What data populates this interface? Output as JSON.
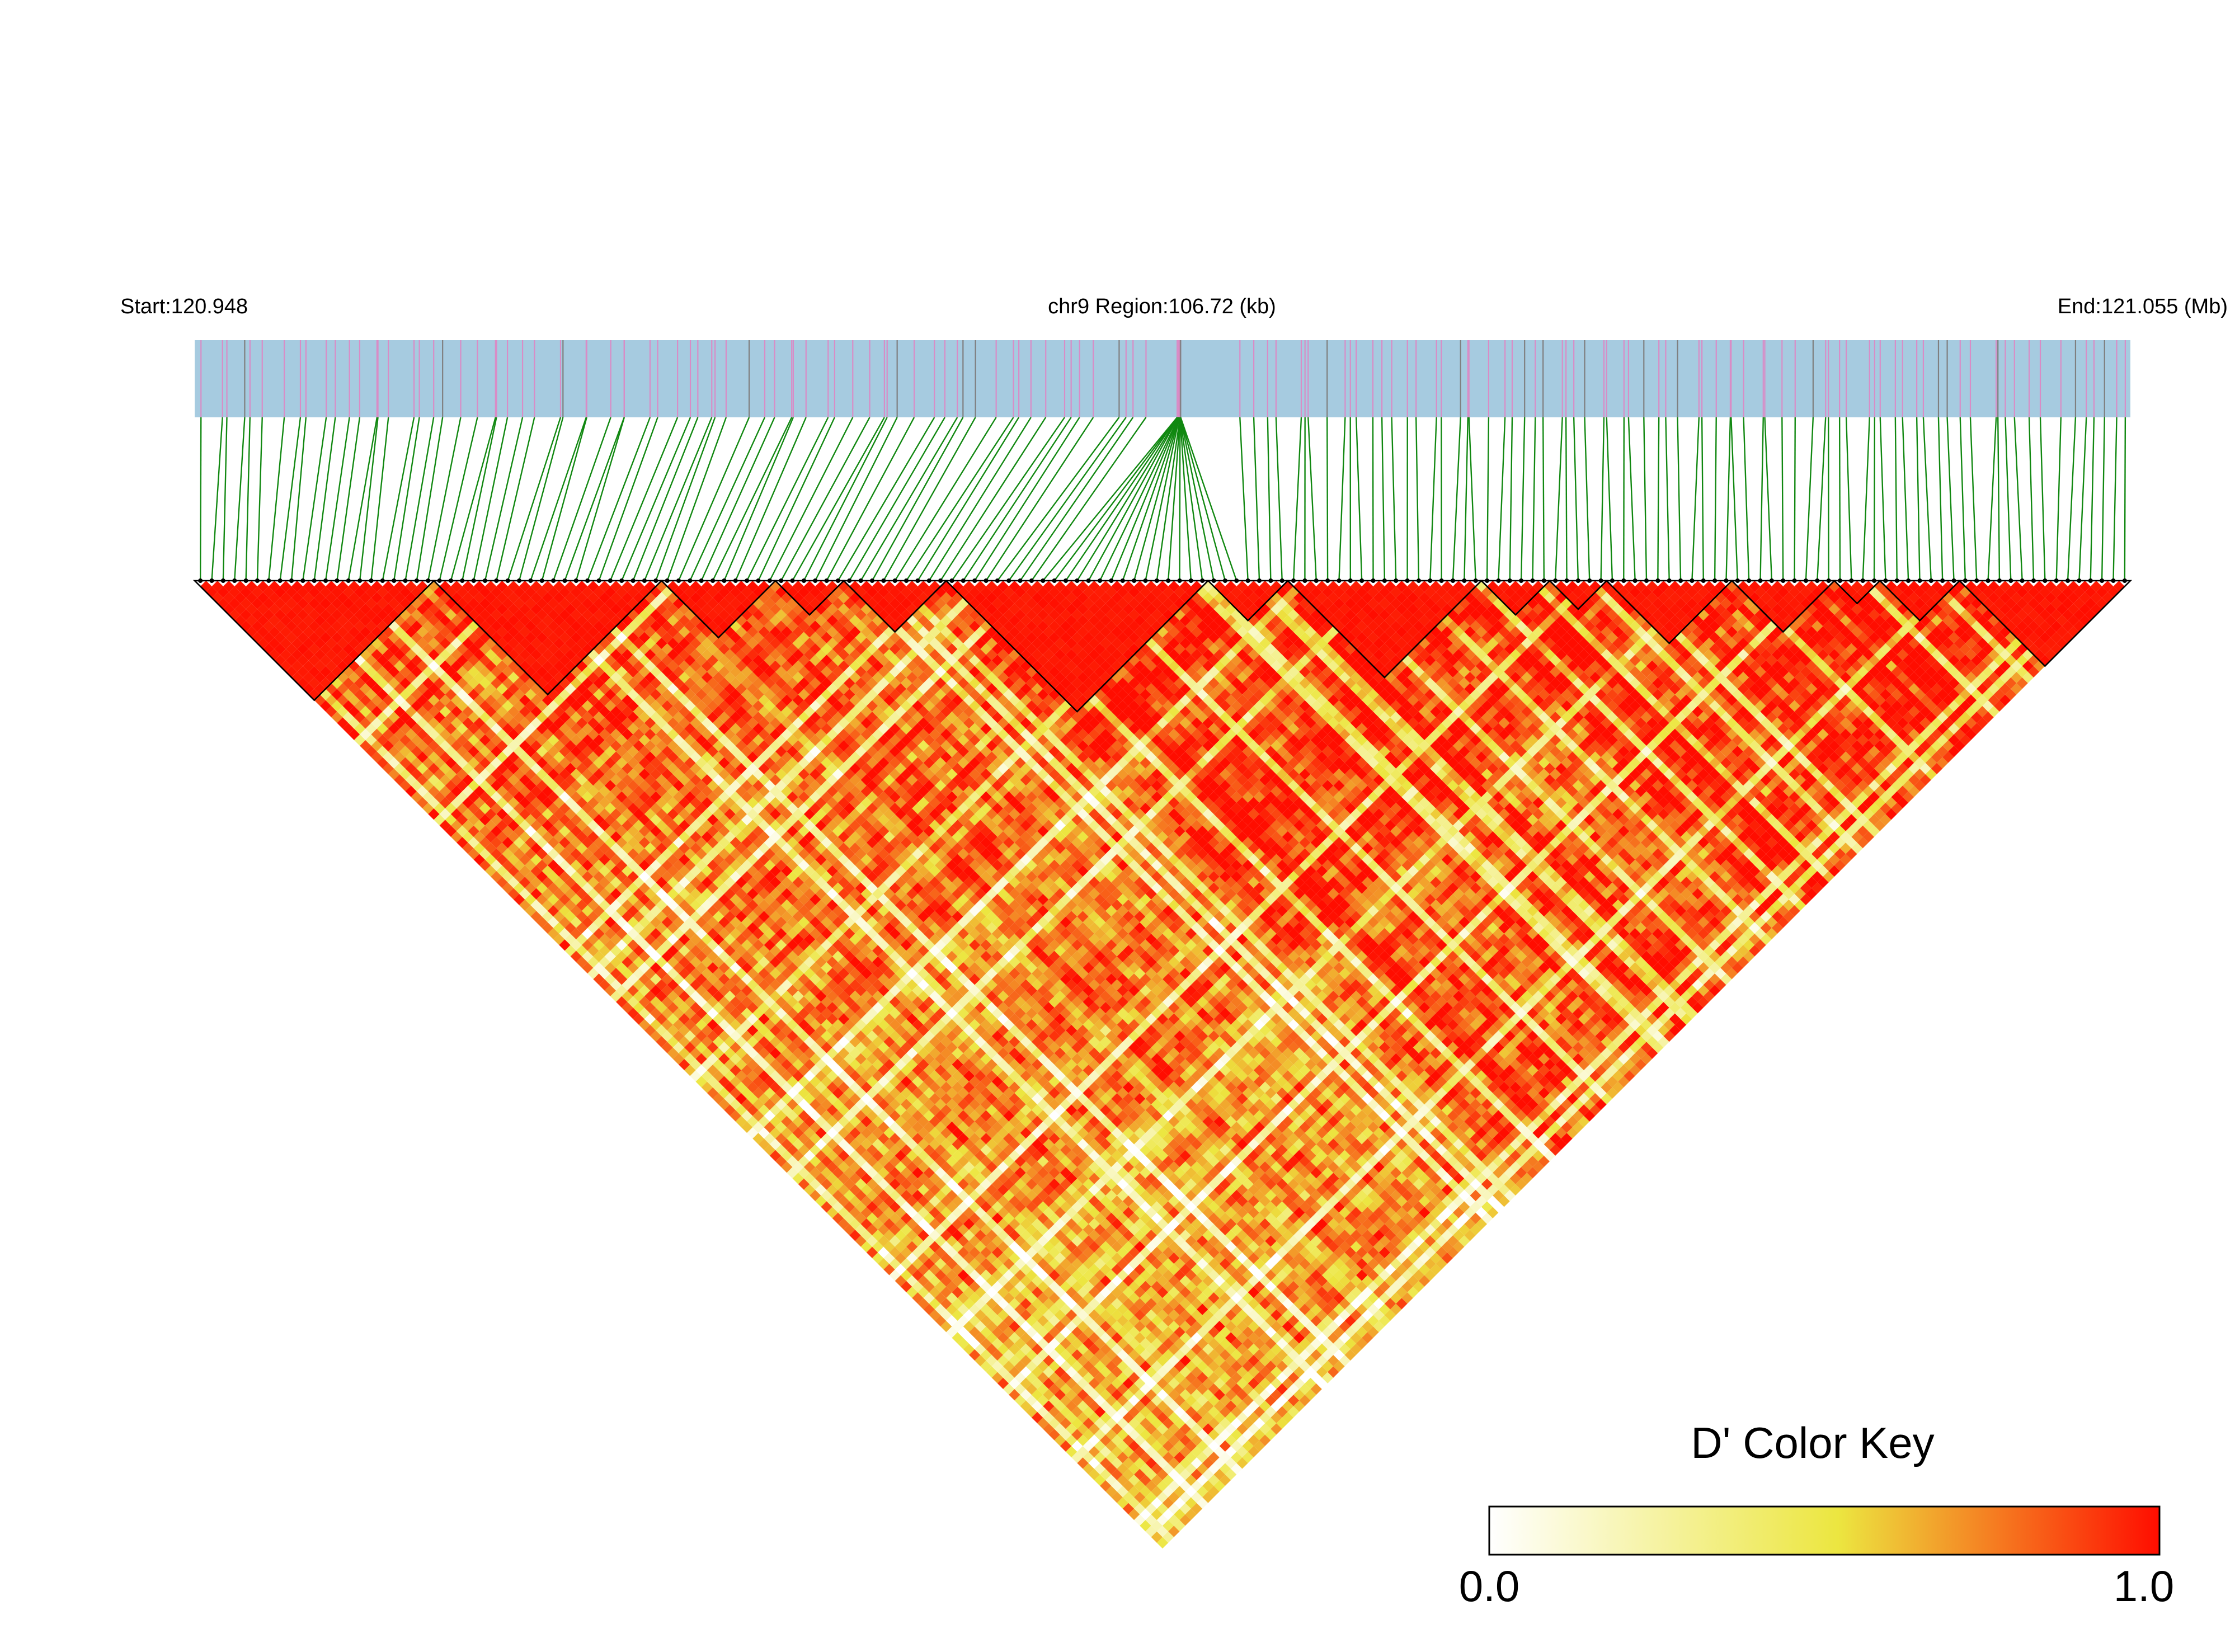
{
  "header": {
    "start_label": "Start:120.948",
    "region_label": "chr9 Region:106.72 (kb)",
    "end_label": "End:121.055 (Mb)"
  },
  "chart_data": {
    "type": "heatmap",
    "description_kind": "linkage-disequilibrium triangle",
    "chromosome": "chr9",
    "region_start_mb": 120.948,
    "region_end_mb": 121.055,
    "region_length_kb": 106.72,
    "snp_count": 170,
    "converging_snp_count": 18,
    "metric": "D'",
    "value_range": [
      0.0,
      1.0
    ],
    "blocks": [
      [
        0,
        20
      ],
      [
        21,
        40
      ],
      [
        41,
        50
      ],
      [
        51,
        56
      ],
      [
        57,
        65
      ],
      [
        66,
        88
      ],
      [
        89,
        95
      ],
      [
        96,
        112
      ],
      [
        113,
        118
      ],
      [
        119,
        123
      ],
      [
        124,
        134
      ],
      [
        135,
        143
      ],
      [
        144,
        147
      ],
      [
        148,
        154
      ],
      [
        155,
        169
      ]
    ],
    "colors": {
      "track_bg": "#a6cbe0",
      "snp_tick_major": "#d98cc6",
      "snp_tick_minor": "#7f7f7f",
      "connector": "#118811",
      "block_outline": "#000000",
      "d_prime_low": "#ffffff",
      "d_prime_mid": "#ece640",
      "d_prime_high": "#ff0d00"
    },
    "legend": {
      "title": "D' Color Key",
      "min_label": "0.0",
      "max_label": "1.0",
      "placement": "bottom-right"
    }
  }
}
